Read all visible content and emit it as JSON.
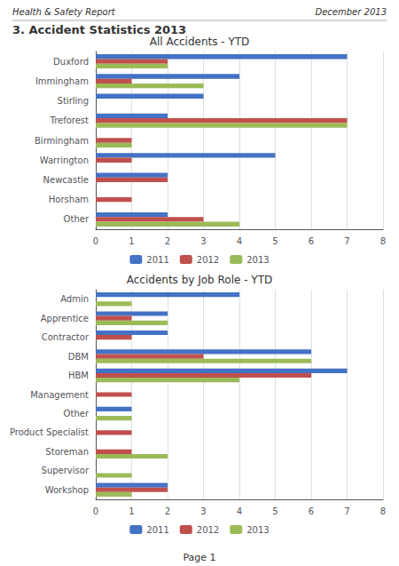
{
  "annotations": [
    "Health & Safety Report",
    "December 2013",
    "3. Accident Statistics 2013",
    "Page 1"
  ],
  "chart_data": [
    {
      "type": "bar",
      "orientation": "horizontal",
      "title": "All Accidents - YTD",
      "categories": [
        "Other",
        "Horsham",
        "Newcastle",
        "Warrington",
        "Birmingham",
        "Treforest",
        "Stirling",
        "Immingham",
        "Duxford"
      ],
      "series": [
        {
          "name": "2011",
          "color": "#4472C4",
          "values": [
            2,
            0,
            2,
            5,
            0,
            2,
            3,
            4,
            7
          ]
        },
        {
          "name": "2012",
          "color": "#C0504D",
          "values": [
            3,
            1,
            2,
            1,
            1,
            7,
            0,
            1,
            2
          ]
        },
        {
          "name": "2013",
          "color": "#9BBB59",
          "values": [
            4,
            0,
            0,
            0,
            1,
            7,
            0,
            3,
            2
          ]
        }
      ],
      "xlim": [
        0,
        8
      ],
      "xticks": [
        0,
        1,
        2,
        3,
        4,
        5,
        6,
        7,
        8
      ],
      "grid": true,
      "legend": "bottom"
    },
    {
      "type": "bar",
      "orientation": "horizontal",
      "title": "Accidents by Job Role - YTD",
      "categories": [
        "Workshop",
        "Supervisor",
        "Storeman",
        "Product Specialist",
        "Other",
        "Management",
        "HBM",
        "DBM",
        "Contractor",
        "Apprentice",
        "Admin"
      ],
      "series": [
        {
          "name": "2011",
          "color": "#4472C4",
          "values": [
            2,
            0,
            0,
            0,
            1,
            0,
            7,
            6,
            2,
            2,
            4
          ]
        },
        {
          "name": "2012",
          "color": "#C0504D",
          "values": [
            2,
            0,
            1,
            1,
            0,
            1,
            6,
            3,
            1,
            1,
            0
          ]
        },
        {
          "name": "2013",
          "color": "#9BBB59",
          "values": [
            1,
            1,
            2,
            0,
            1,
            0,
            4,
            6,
            0,
            2,
            1
          ]
        }
      ],
      "xlim": [
        0,
        8
      ],
      "xticks": [
        0,
        1,
        2,
        3,
        4,
        5,
        6,
        7,
        8
      ],
      "grid": true,
      "legend": "bottom"
    }
  ]
}
